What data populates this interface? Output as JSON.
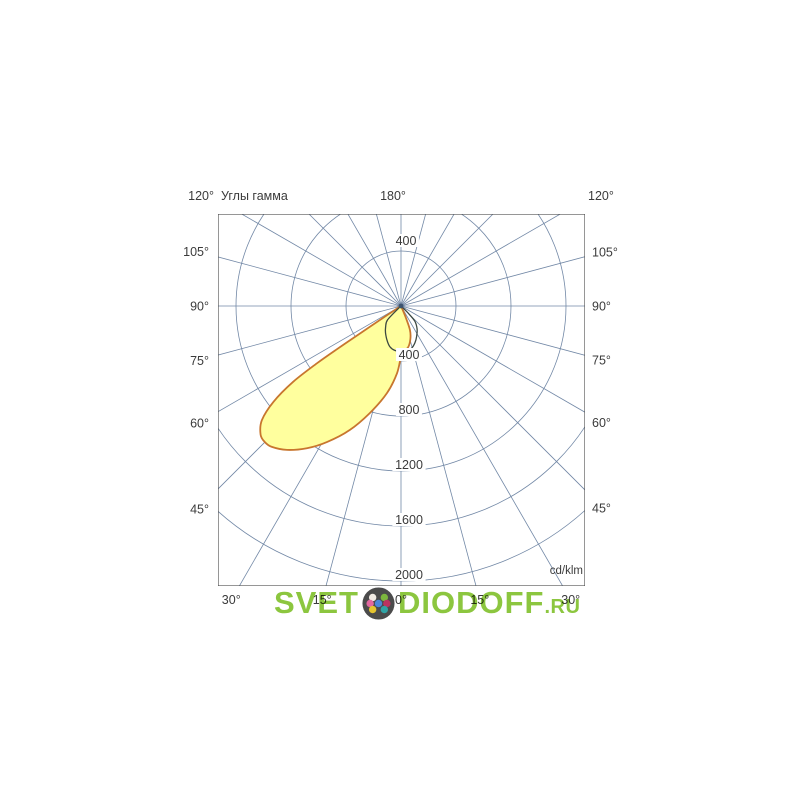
{
  "chart_data": {
    "type": "polar_photometric",
    "title": "Углы гамма",
    "top_left_label": "120°",
    "top_center_label": "180°",
    "top_right_label": "120°",
    "units_label": "cd/klm",
    "radial_unit": "cd/klm",
    "ring_step": 400,
    "rings": [
      400,
      800,
      1200,
      1600,
      2000
    ],
    "ring_label_above": "400",
    "ring_labels_below": [
      "400",
      "800",
      "1200",
      "1600",
      "2000"
    ],
    "ray_step_deg": 15,
    "grid_color": "#7288a6",
    "box_color": "#4f4f4f",
    "label_color": "#3b3b3b",
    "angle_labels": {
      "left": [
        {
          "deg": 105,
          "label": "105°"
        },
        {
          "deg": 90,
          "label": "90°"
        },
        {
          "deg": 75,
          "label": "75°"
        },
        {
          "deg": 60,
          "label": "60°"
        },
        {
          "deg": 45,
          "label": "45°"
        }
      ],
      "right": [
        {
          "deg": 105,
          "label": "105°"
        },
        {
          "deg": 90,
          "label": "90°"
        },
        {
          "deg": 75,
          "label": "75°"
        },
        {
          "deg": 60,
          "label": "60°"
        },
        {
          "deg": 45,
          "label": "45°"
        }
      ],
      "bottom": [
        {
          "deg": 30,
          "dir": -1,
          "label": "30°"
        },
        {
          "deg": 15,
          "dir": -1,
          "label": "15°"
        },
        {
          "deg": 0,
          "dir": 0,
          "label": "0°"
        },
        {
          "deg": 15,
          "dir": 1,
          "label": "15°"
        },
        {
          "deg": 30,
          "dir": 1,
          "label": "30°"
        }
      ]
    },
    "series": [
      {
        "name": "main-beam-plane",
        "fill": "#ffff9e",
        "stroke": "#c8762e",
        "stroke_width": 1.8,
        "points_gamma_cdklm": [
          [
            57,
            30
          ],
          [
            56.5,
            160
          ],
          [
            56.2,
            340
          ],
          [
            56,
            540
          ],
          [
            55.7,
            740
          ],
          [
            54.9,
            960
          ],
          [
            53.1,
            1160
          ],
          [
            50.6,
            1310
          ],
          [
            47.5,
            1385
          ],
          [
            45,
            1400
          ],
          [
            42.5,
            1390
          ],
          [
            38.4,
            1335
          ],
          [
            33.5,
            1240
          ],
          [
            28.5,
            1125
          ],
          [
            22.4,
            975
          ],
          [
            16.2,
            810
          ],
          [
            9.1,
            640
          ],
          [
            3.4,
            490
          ],
          [
            -1.2,
            345
          ],
          [
            -9.7,
            305
          ],
          [
            -16,
            248
          ],
          [
            -20.6,
            185
          ],
          [
            -22.5,
            95
          ],
          [
            -23,
            20
          ]
        ]
      },
      {
        "name": "secondary-plane",
        "fill": "none",
        "stroke": "#3c4840",
        "stroke_width": 1.3,
        "points_gamma_cdklm": [
          [
            48,
            15
          ],
          [
            44,
            140
          ],
          [
            36,
            190
          ],
          [
            30,
            225
          ],
          [
            22,
            270
          ],
          [
            15,
            308
          ],
          [
            8,
            326
          ],
          [
            0,
            333
          ],
          [
            -8,
            326
          ],
          [
            -14,
            317
          ],
          [
            -21,
            285
          ],
          [
            -27,
            250
          ],
          [
            -35,
            204
          ],
          [
            -42,
            152
          ],
          [
            -45,
            80
          ],
          [
            -46,
            15
          ]
        ]
      }
    ],
    "center_marker_color": "#3d5470"
  },
  "watermark": {
    "text_left": "SVET",
    "text_right": "DIODOFF",
    "suffix": ".RU",
    "text_color": "#8cc63f",
    "logo": {
      "disc": "#4b4b4b",
      "dot_colors": {
        "white": "#f2ece4",
        "green": "#7cb63e",
        "pink": "#e2679f",
        "blue": "#4a86d8",
        "magenta": "#bb3360",
        "yellow": "#e5c42e",
        "teal": "#2fa3a5"
      }
    }
  }
}
